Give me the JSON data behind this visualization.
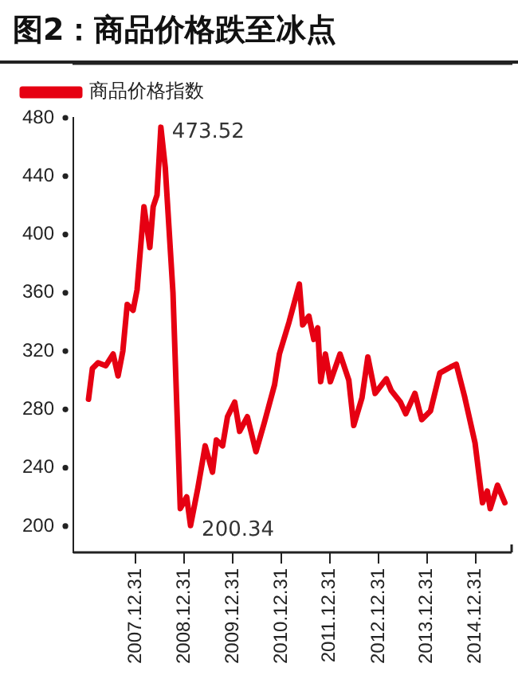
{
  "chart_data": {
    "type": "line",
    "title": "图2：商品价格跌至冰点",
    "legend": "top left",
    "marker": "none",
    "line_style": "solid",
    "grid": false,
    "x": [
      "2007-01-12",
      "2007-02-10",
      "2007-03-25",
      "2007-05-22",
      "2007-07-16",
      "2007-08-22",
      "2007-09-27",
      "2007-10-30",
      "2007-12-13",
      "2008-01-12",
      "2008-03-04",
      "2008-04-17",
      "2008-05-12",
      "2008-06-10",
      "2008-07-09",
      "2008-08-11",
      "2008-10-08",
      "2008-12-02",
      "2009-01-19",
      "2009-02-17",
      "2009-04-13",
      "2009-06-07",
      "2009-08-01",
      "2009-08-30",
      "2009-10-16",
      "2009-11-22",
      "2010-01-15",
      "2010-02-21",
      "2010-04-20",
      "2010-06-24",
      "2010-08-26",
      "2010-11-11",
      "2010-12-17",
      "2011-02-28",
      "2011-05-16",
      "2011-06-10",
      "2011-07-27",
      "2011-09-02",
      "2011-10-01",
      "2011-10-23",
      "2011-11-28",
      "2012-01-04",
      "2012-03-17",
      "2012-05-22",
      "2012-06-28",
      "2012-08-29",
      "2012-10-12",
      "2012-12-06",
      "2013-02-28",
      "2013-04-06",
      "2013-06-14",
      "2013-07-24",
      "2013-10-01",
      "2013-11-21",
      "2014-01-26",
      "2014-04-06",
      "2014-06-25",
      "2014-08-08",
      "2014-10-09",
      "2014-12-27",
      "2015-02-21",
      "2015-03-29",
      "2015-04-20",
      "2015-06-14",
      "2015-08-08"
    ],
    "series": [
      {
        "name": "商品价格指数",
        "color": "#e60012",
        "values": [
          287,
          308,
          312,
          310,
          318,
          303,
          320,
          352,
          348,
          362,
          419,
          391,
          419,
          427,
          473.52,
          446,
          360,
          212,
          220,
          200.34,
          226,
          255,
          237,
          259,
          255,
          275,
          285,
          265,
          275,
          251,
          271,
          297,
          318,
          340,
          366,
          338,
          344,
          328,
          336,
          299,
          318,
          299,
          318,
          300,
          269,
          288,
          316,
          291,
          301,
          293,
          285,
          277,
          291,
          273,
          279,
          305,
          309,
          311,
          289,
          257,
          216,
          224,
          212,
          228,
          216
        ]
      }
    ],
    "xlim": [
      "2006-09-20",
      "2015-09-28"
    ],
    "xticks": [
      {
        "value": "2007-12-31",
        "label": "2007.12.31"
      },
      {
        "value": "2008-12-31",
        "label": "2008.12.31"
      },
      {
        "value": "2009-12-31",
        "label": "2009.12.31"
      },
      {
        "value": "2010-12-31",
        "label": "2010.12.31"
      },
      {
        "value": "2011-12-31",
        "label": "2011.12.31"
      },
      {
        "value": "2012-12-31",
        "label": "2012.12.31"
      },
      {
        "value": "2013-12-31",
        "label": "2013.12.31"
      },
      {
        "value": "2014-12-31",
        "label": "2014.12.31"
      }
    ],
    "ylim": [
      182,
      480
    ],
    "yticks": [
      200,
      240,
      280,
      320,
      360,
      400,
      440,
      480
    ],
    "annotations": [
      {
        "text": "473.52",
        "x": "2008-07-09",
        "y": 473.52
      },
      {
        "text": "200.34",
        "x": "2009-02-17",
        "y": 200.34
      }
    ]
  }
}
